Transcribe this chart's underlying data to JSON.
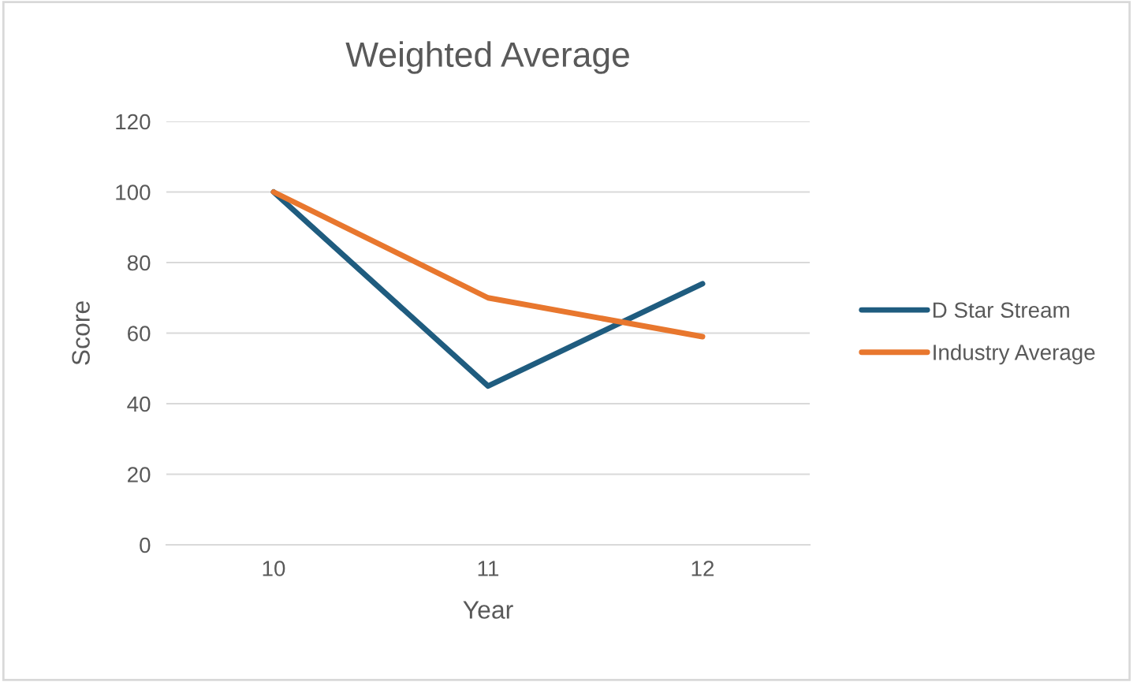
{
  "chart_data": {
    "type": "line",
    "title": "Weighted Average",
    "xlabel": "Year",
    "ylabel": "Score",
    "categories": [
      "10",
      "11",
      "12"
    ],
    "series": [
      {
        "name": "D Star Stream",
        "color": "#1f5c7f",
        "values": [
          100,
          45,
          74
        ]
      },
      {
        "name": "Industry Average",
        "color": "#e8772e",
        "values": [
          100,
          70,
          59
        ]
      }
    ],
    "ylim": [
      0,
      120
    ],
    "yticks": [
      0,
      20,
      40,
      60,
      80,
      100,
      120
    ],
    "grid": "y",
    "legend": "right",
    "marker": "none"
  }
}
